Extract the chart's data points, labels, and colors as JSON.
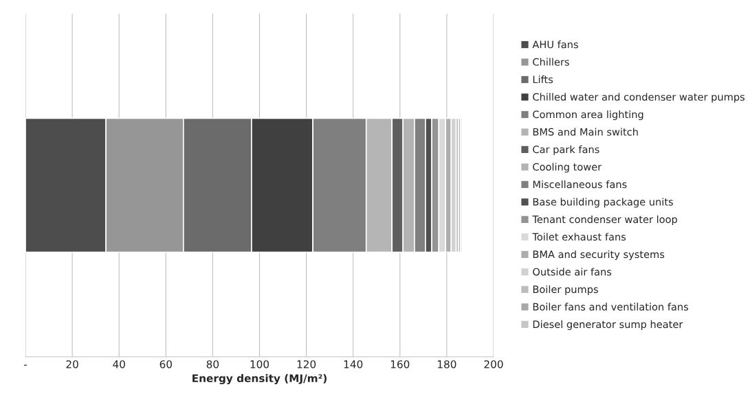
{
  "chart_data": {
    "type": "bar",
    "orientation": "horizontal",
    "stacked": true,
    "xlabel": "Energy density (MJ/m²)",
    "categories": [
      null
    ],
    "xlim": [
      0,
      200
    ],
    "xticks": [
      {
        "value": 0,
        "label": "-"
      },
      20,
      40,
      60,
      80,
      100,
      120,
      140,
      160,
      180,
      200
    ],
    "grid": "x",
    "legend": "right",
    "series": [
      {
        "name": "AHU fans",
        "color": "#4d4d4d",
        "values": [
          34.4
        ]
      },
      {
        "name": "Chillers",
        "color": "#969696",
        "values": [
          33.1
        ]
      },
      {
        "name": "Lifts",
        "color": "#6b6b6b",
        "values": [
          29.1
        ]
      },
      {
        "name": "Chilled water and condenser water pumps",
        "color": "#404040",
        "values": [
          26.2
        ]
      },
      {
        "name": "Common area lighting",
        "color": "#7f7f7f",
        "values": [
          22.8
        ]
      },
      {
        "name": "BMS and Main switch",
        "color": "#b5b5b5",
        "values": [
          11.0
        ]
      },
      {
        "name": "Car park fans",
        "color": "#5f5f5f",
        "values": [
          4.7
        ]
      },
      {
        "name": "Cooling tower",
        "color": "#b3b3b3",
        "values": [
          4.9
        ]
      },
      {
        "name": "Miscellaneous fans",
        "color": "#808080",
        "values": [
          4.7
        ]
      },
      {
        "name": "Base building package units",
        "color": "#505050",
        "values": [
          2.7
        ]
      },
      {
        "name": "Tenant condenser water loop",
        "color": "#939393",
        "values": [
          3.0
        ]
      },
      {
        "name": "Toilet exhaust fans",
        "color": "#d9d9d9",
        "values": [
          2.9
        ]
      },
      {
        "name": "BMA and security systems",
        "color": "#adadad",
        "values": [
          2.4
        ]
      },
      {
        "name": "Outside air fans",
        "color": "#d0d0d0",
        "values": [
          2.1
        ]
      },
      {
        "name": "Boiler pumps",
        "color": "#bdbdbd",
        "values": [
          1.1
        ]
      },
      {
        "name": "Boiler fans and ventilation fans",
        "color": "#a8a8a8",
        "values": [
          0.8
        ]
      },
      {
        "name": "Diesel generator sump heater",
        "color": "#c6c6c6",
        "values": [
          0.6
        ]
      }
    ]
  }
}
